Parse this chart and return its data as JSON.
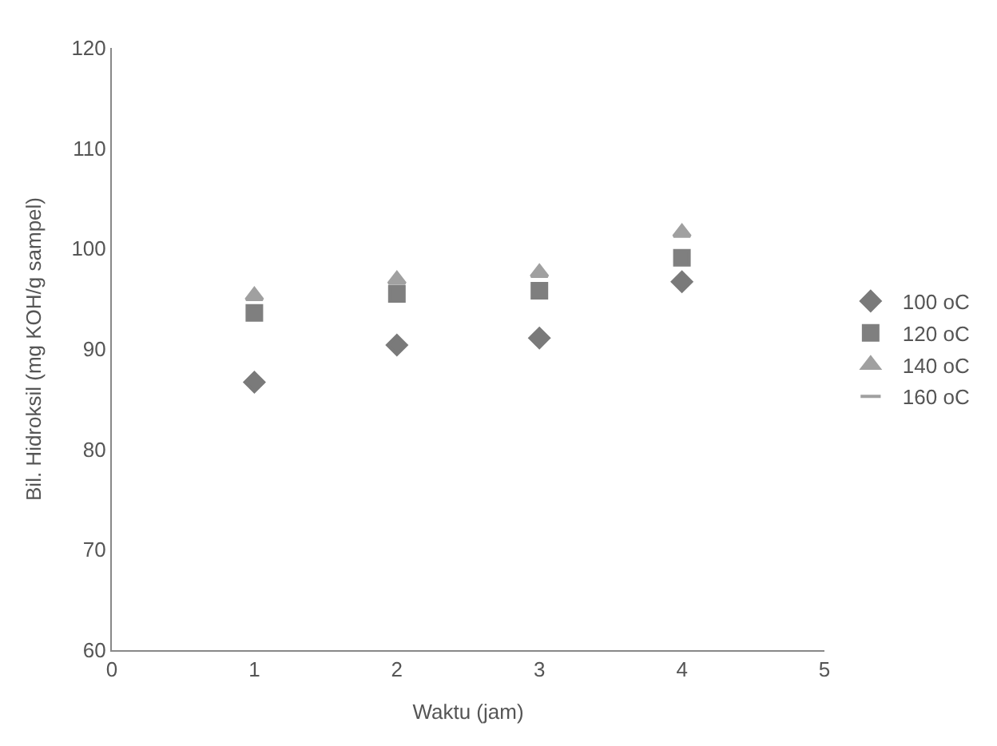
{
  "chart_data": {
    "type": "scatter",
    "xlabel": "Waktu (jam)",
    "ylabel": "Bil. Hidroksil (mg KOH/g sampel)",
    "x": [
      1,
      2,
      3,
      4
    ],
    "series": [
      {
        "name": "100 oC",
        "color": "#7a7a7a",
        "marker": "diamond",
        "values": [
          86.7,
          90.4,
          91.1,
          96.7
        ]
      },
      {
        "name": "120 oC",
        "color": "#7f7f7f",
        "marker": "square",
        "values": [
          93.6,
          95.5,
          95.8,
          99.1
        ]
      },
      {
        "name": "140 oC",
        "color": "#a0a0a0",
        "marker": "triangle",
        "values": [
          95.3,
          96.9,
          97.6,
          101.6
        ]
      },
      {
        "name": "160 oC",
        "color": "#a0a0a0",
        "marker": "cross",
        "values": [
          null,
          null,
          null,
          null
        ]
      }
    ],
    "xlim": [
      0,
      5
    ],
    "xticks": [
      0,
      1,
      2,
      3,
      4,
      5
    ],
    "ylim": [
      60,
      120
    ],
    "yticks": [
      60,
      70,
      80,
      90,
      100,
      110,
      120
    ],
    "legend": "right"
  }
}
